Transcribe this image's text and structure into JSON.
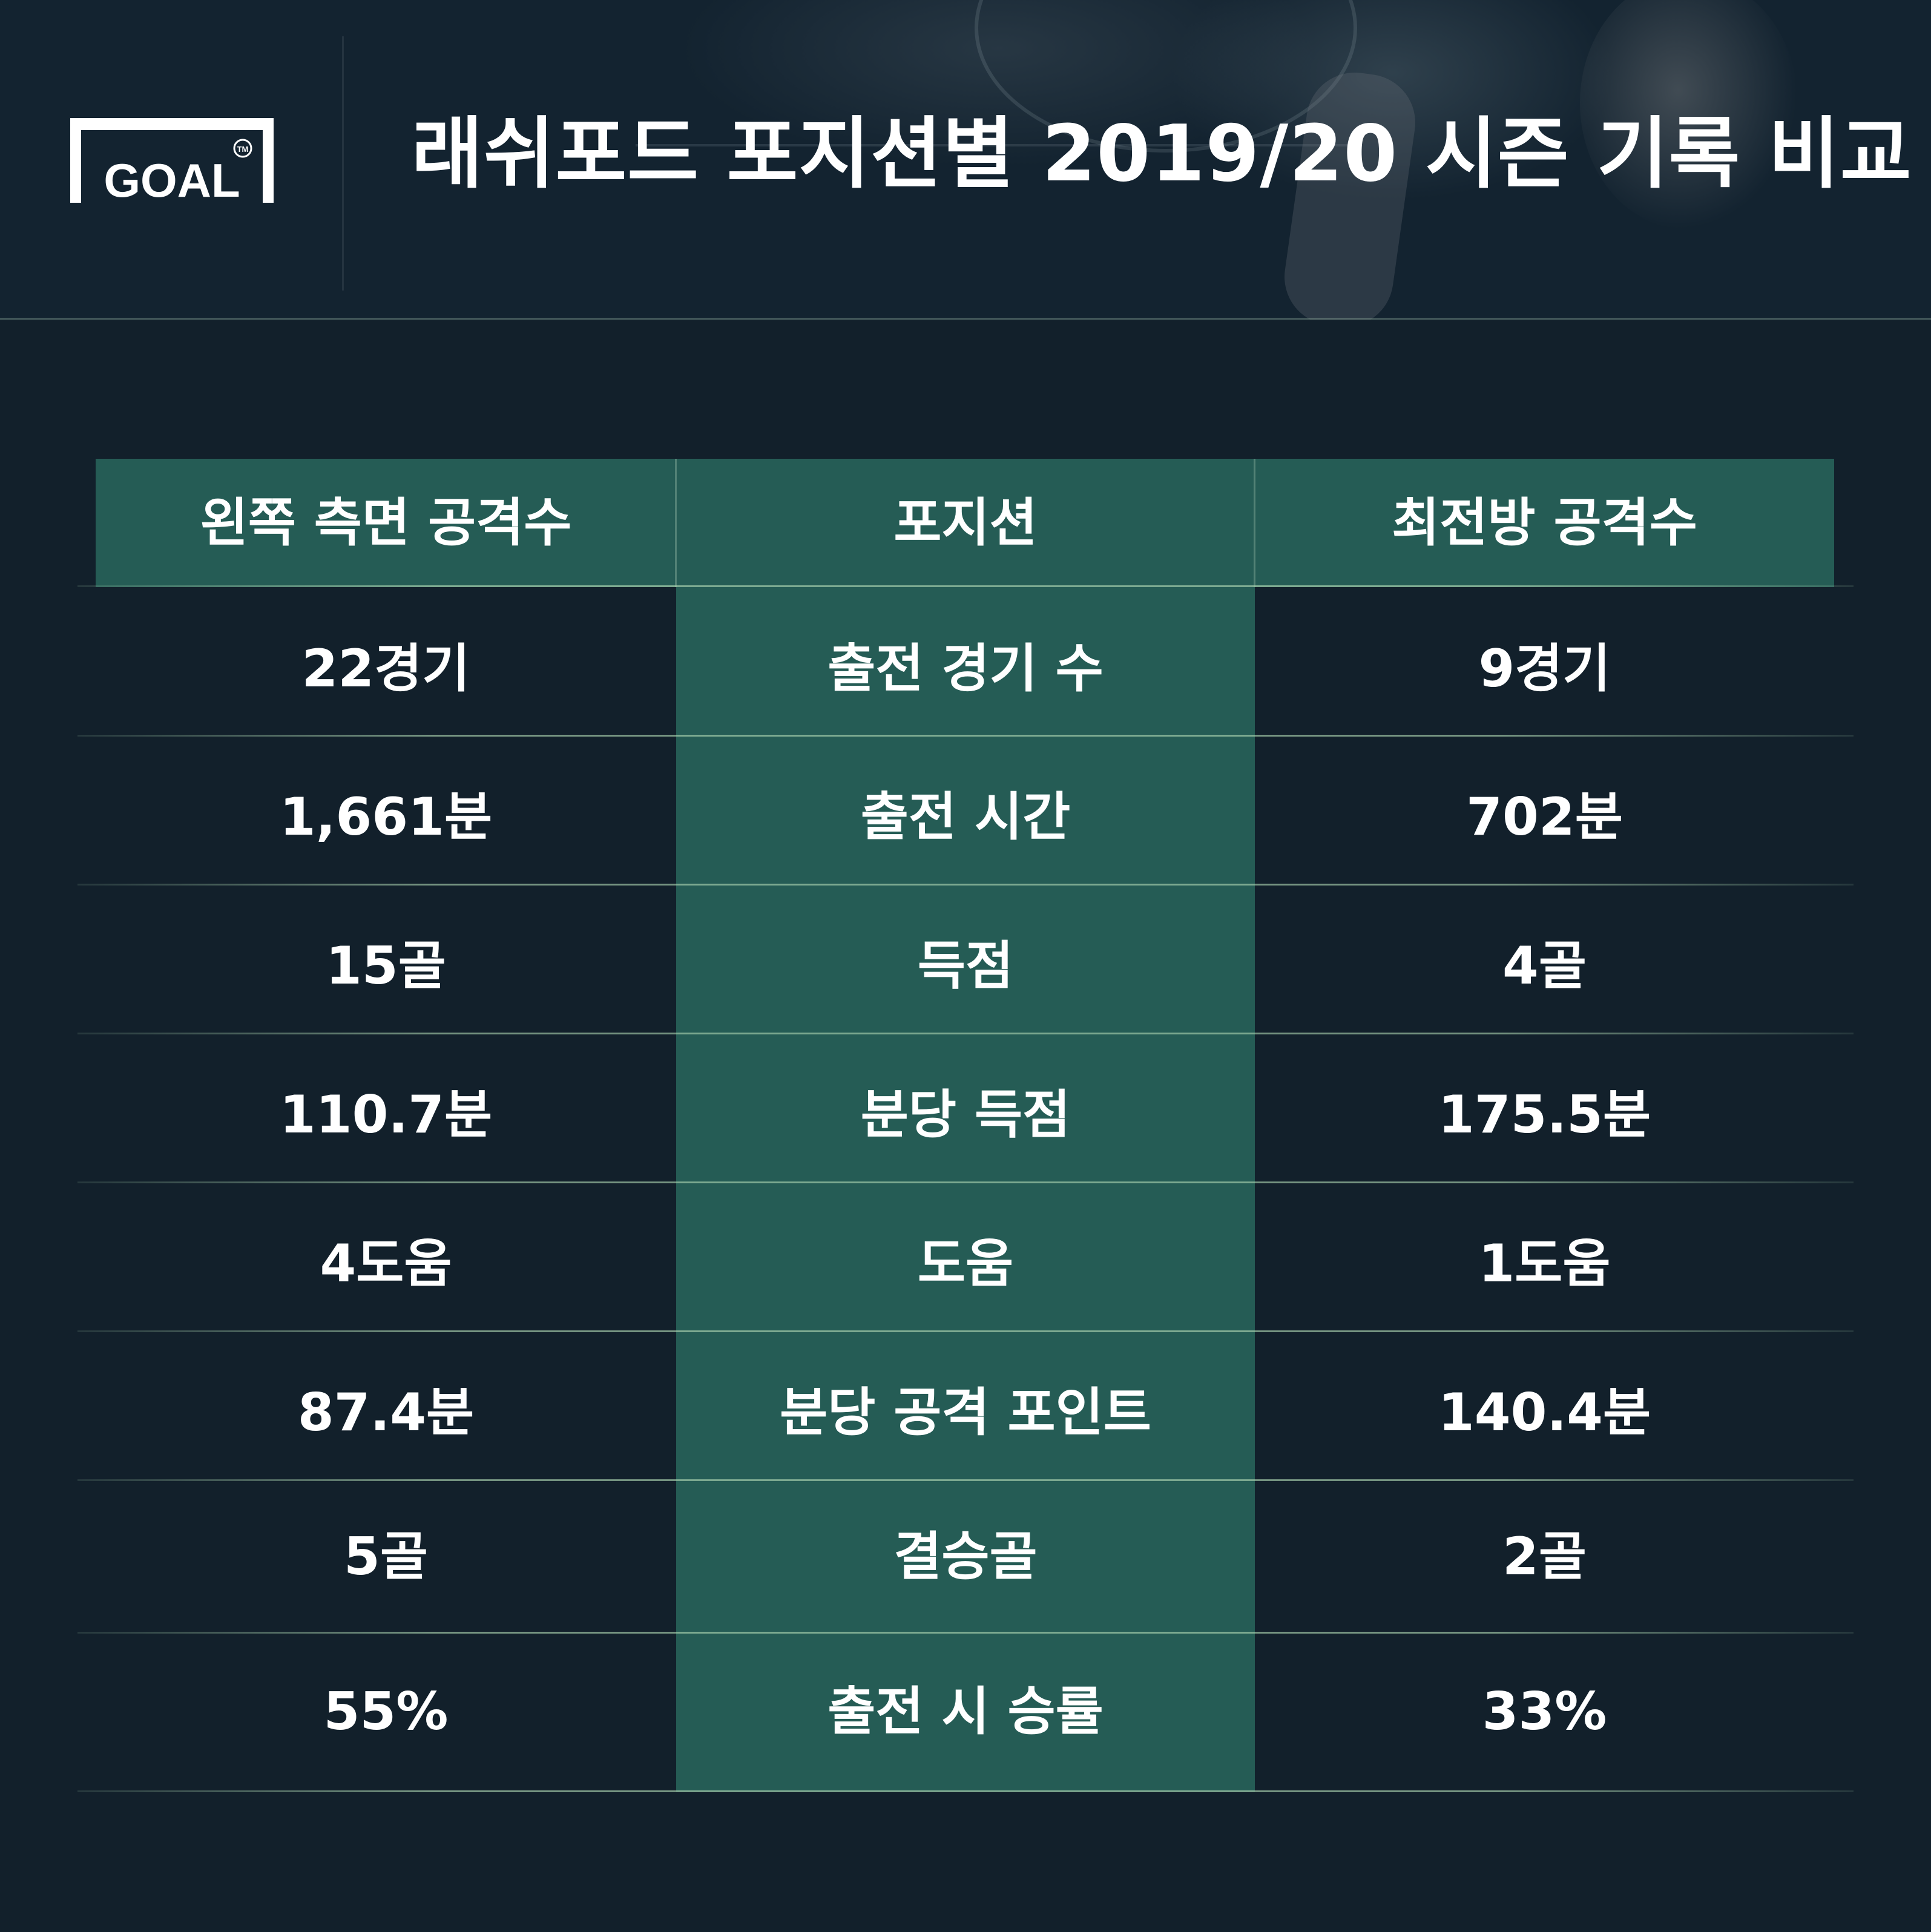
{
  "header": {
    "title": "래쉬포드 포지션별 2019/20 시즌 기록 비교",
    "logo_text": "GOAL",
    "logo_mark": "TM"
  },
  "table": {
    "headers": {
      "left": "왼쪽 측면 공격수",
      "middle": "포지션",
      "right": "최전방 공격수"
    },
    "rows": [
      {
        "left": "22경기",
        "label": "출전 경기 수",
        "right": "9경기"
      },
      {
        "left": "1,661분",
        "label": "출전 시간",
        "right": "702분"
      },
      {
        "left": "15골",
        "label": "득점",
        "right": "4골"
      },
      {
        "left": "110.7분",
        "label": "분당 득점",
        "right": "175.5분"
      },
      {
        "left": "4도움",
        "label": "도움",
        "right": "1도움"
      },
      {
        "left": "87.4분",
        "label": "분당 공격 포인트",
        "right": "140.4분"
      },
      {
        "left": "5골",
        "label": "결승골",
        "right": "2골"
      },
      {
        "left": "55%",
        "label": "출전 시 승률",
        "right": "33%"
      }
    ]
  },
  "colors": {
    "background": "#12202b",
    "accent_green": "#255c55",
    "text": "#ffffff"
  }
}
